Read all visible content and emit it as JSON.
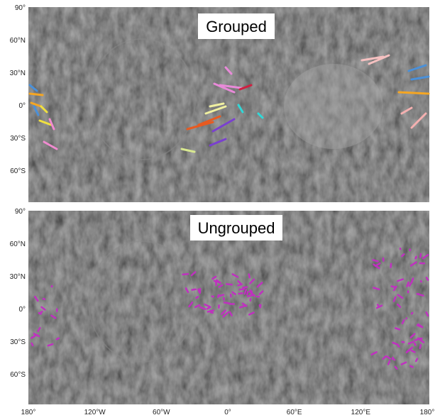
{
  "panels": [
    {
      "title": "Grouped",
      "lat_labels": [
        "90°",
        "60°N",
        "30°N",
        "0°",
        "30°S",
        "60°S"
      ]
    },
    {
      "title": "Ungrouped",
      "lat_labels": [
        "90°",
        "60°N",
        "30°N",
        "0°",
        "30°S",
        "60°S"
      ]
    }
  ],
  "lon_labels": [
    "180°",
    "120°W",
    "60°W",
    "0°",
    "60°E",
    "120°E",
    "180°"
  ]
}
